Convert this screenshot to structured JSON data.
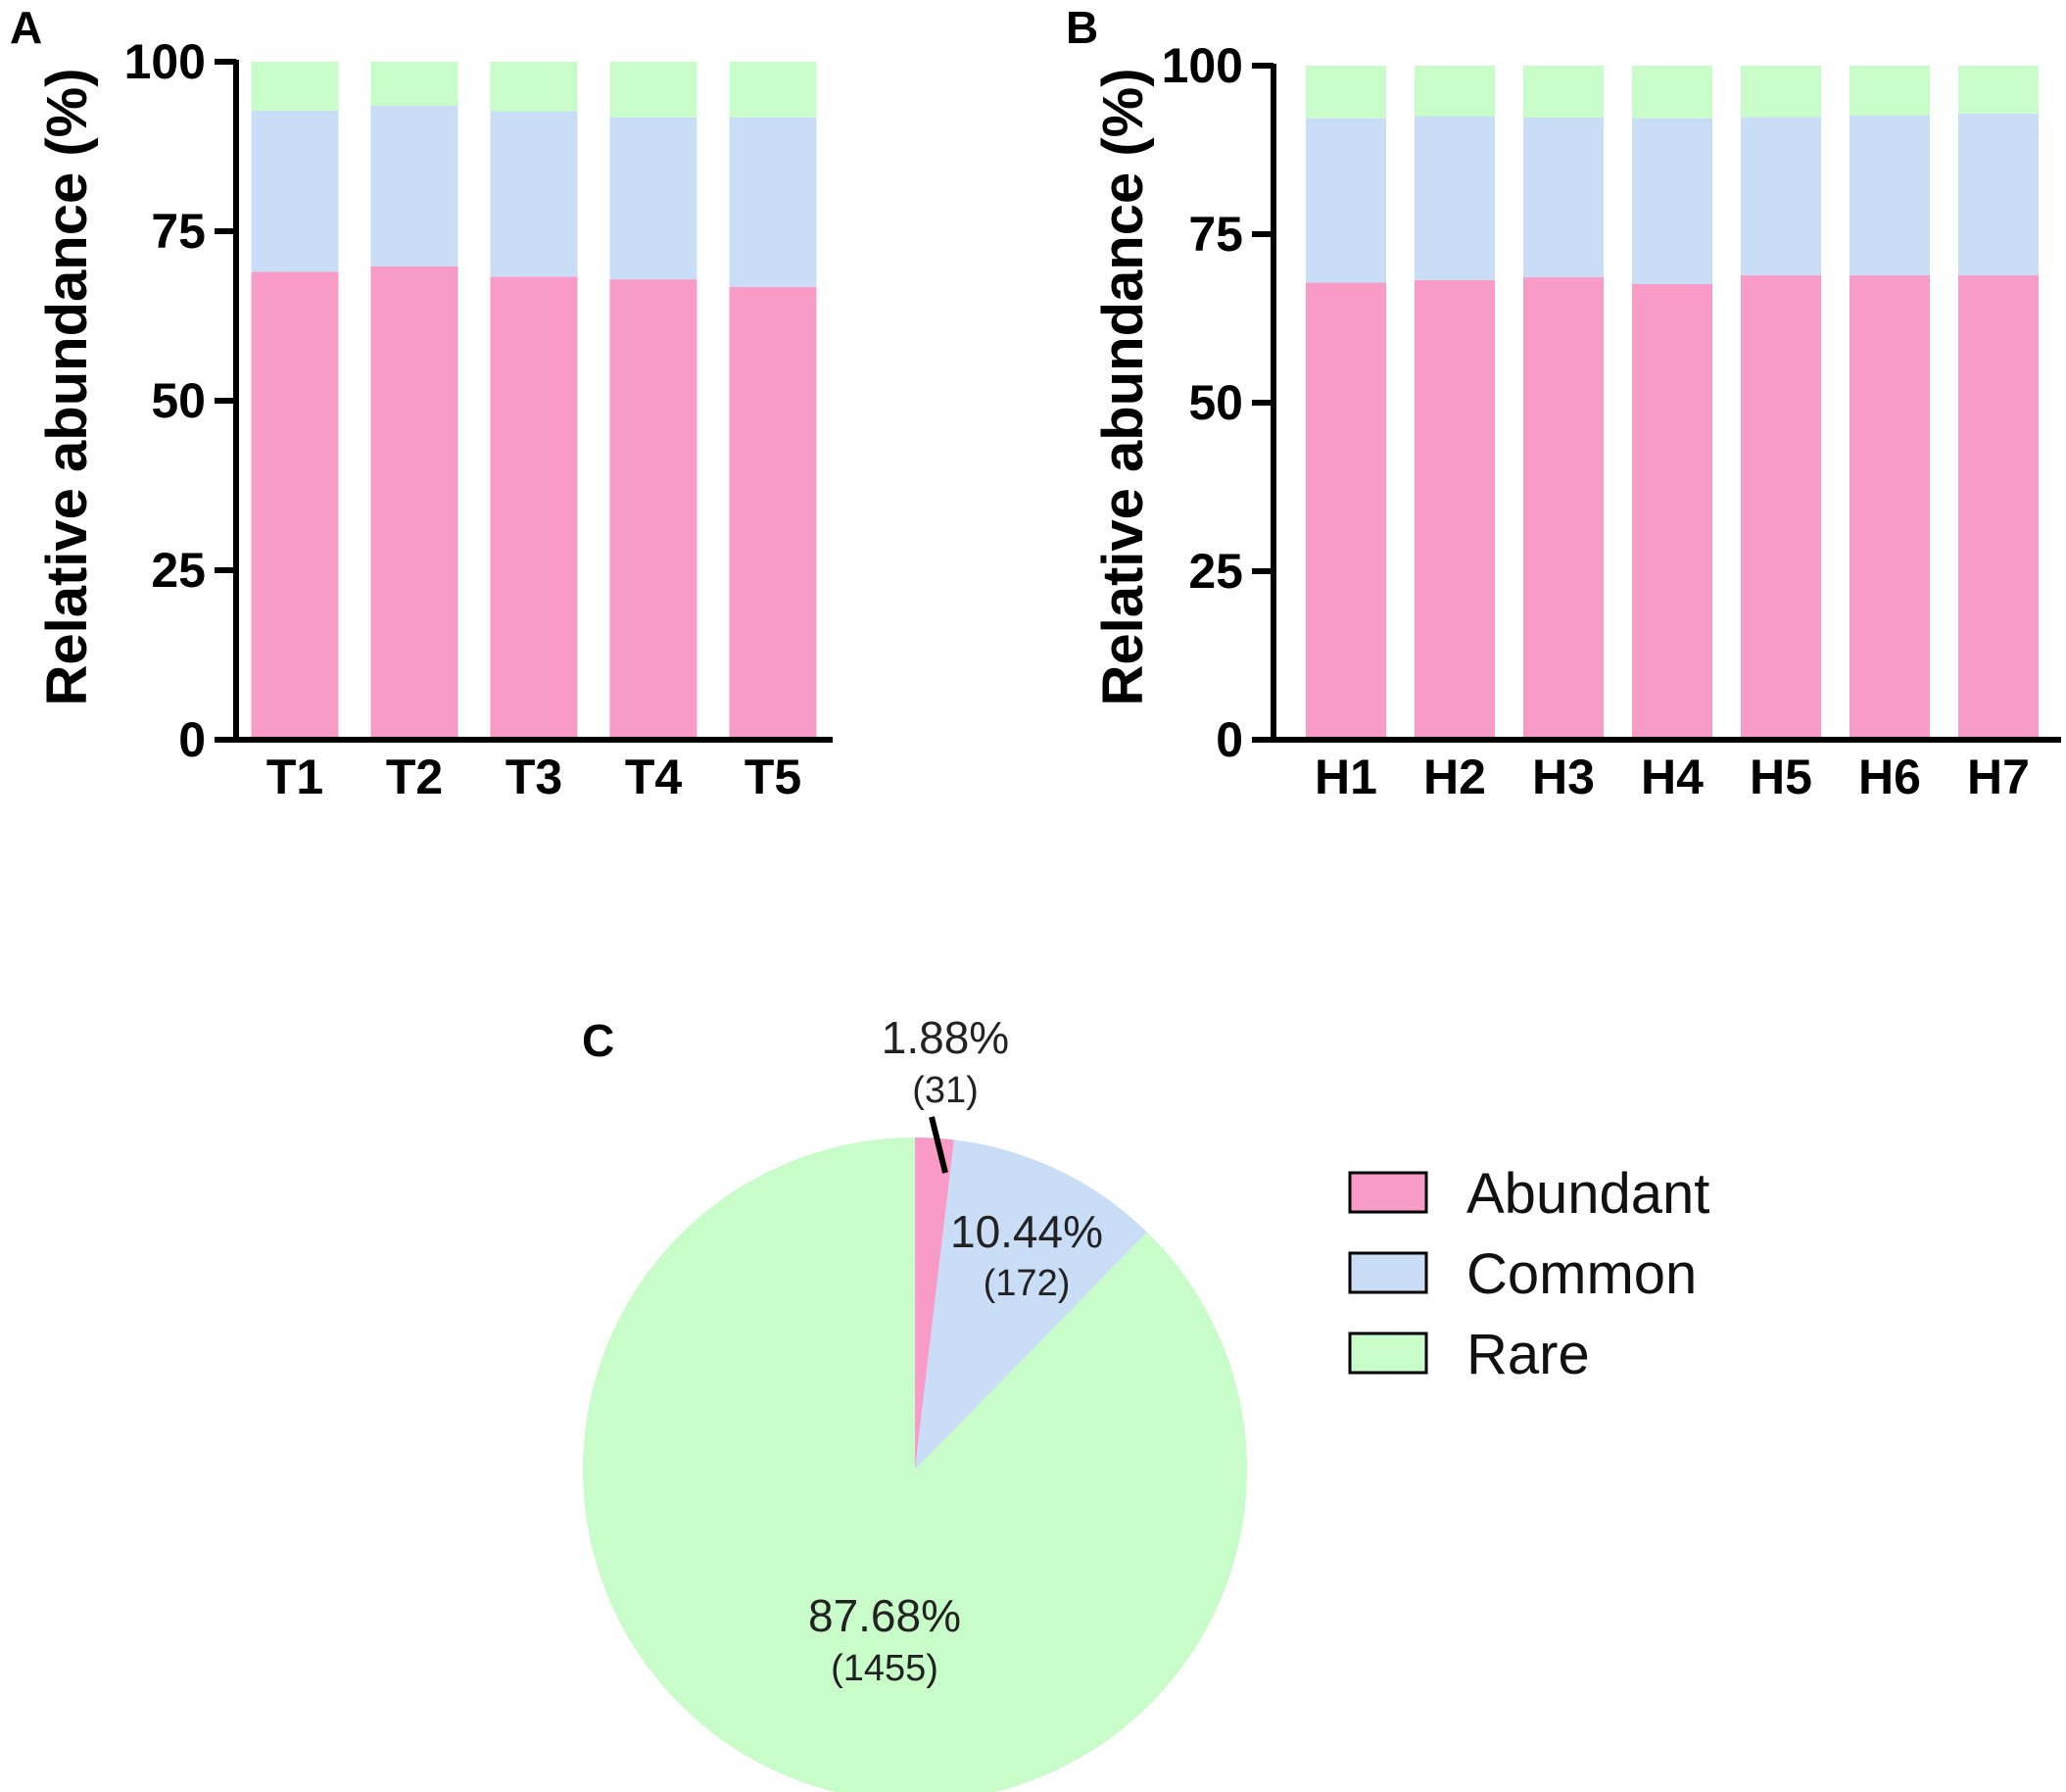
{
  "colors": {
    "abundant": "#f89bc6",
    "common": "#c9ddf7",
    "rare": "#c8fcc8",
    "axis": "#000000"
  },
  "chart_data": [
    {
      "panel": "A",
      "type": "bar",
      "stacked": true,
      "categories": [
        "T1",
        "T2",
        "T3",
        "T4",
        "T5"
      ],
      "series": [
        {
          "name": "Abundant",
          "color_key": "abundant",
          "values": [
            69.0,
            69.8,
            68.3,
            67.9,
            66.8
          ]
        },
        {
          "name": "Common",
          "color_key": "common",
          "values": [
            23.8,
            23.7,
            24.4,
            23.9,
            25.0
          ]
        },
        {
          "name": "Rare",
          "color_key": "rare",
          "values": [
            7.2,
            6.5,
            7.3,
            8.2,
            8.2
          ]
        }
      ],
      "ylabel": "Relative abundance (%)",
      "xlabel": "",
      "ylim": [
        0,
        100
      ],
      "yticks": [
        0,
        25,
        50,
        75,
        100
      ]
    },
    {
      "panel": "B",
      "type": "bar",
      "stacked": true,
      "categories": [
        "H1",
        "H2",
        "H3",
        "H4",
        "H5",
        "H6",
        "H7"
      ],
      "series": [
        {
          "name": "Abundant",
          "color_key": "abundant",
          "values": [
            67.8,
            68.2,
            68.6,
            67.6,
            68.9,
            68.9,
            68.9
          ]
        },
        {
          "name": "Common",
          "color_key": "common",
          "values": [
            24.4,
            24.3,
            23.7,
            24.6,
            23.5,
            23.7,
            24.0
          ]
        },
        {
          "name": "Rare",
          "color_key": "rare",
          "values": [
            7.8,
            7.5,
            7.7,
            7.8,
            7.6,
            7.4,
            7.1
          ]
        }
      ],
      "ylabel": "Relative abundance (%)",
      "xlabel": "",
      "ylim": [
        0,
        100
      ],
      "yticks": [
        0,
        25,
        50,
        75,
        100
      ]
    },
    {
      "panel": "C",
      "type": "pie",
      "slices": [
        {
          "name": "Abundant",
          "color_key": "abundant",
          "percent": 1.88,
          "count": 31,
          "pct_label": "1.88%",
          "count_label": "(31)"
        },
        {
          "name": "Common",
          "color_key": "common",
          "percent": 10.44,
          "count": 172,
          "pct_label": "10.44%",
          "count_label": "(172)"
        },
        {
          "name": "Rare",
          "color_key": "rare",
          "percent": 87.68,
          "count": 1455,
          "pct_label": "87.68%",
          "count_label": "(1455)"
        }
      ],
      "legend": {
        "position": "right",
        "entries": [
          {
            "label": "Abundant",
            "color_key": "abundant"
          },
          {
            "label": "Common",
            "color_key": "common"
          },
          {
            "label": "Rare",
            "color_key": "rare"
          }
        ]
      }
    }
  ]
}
